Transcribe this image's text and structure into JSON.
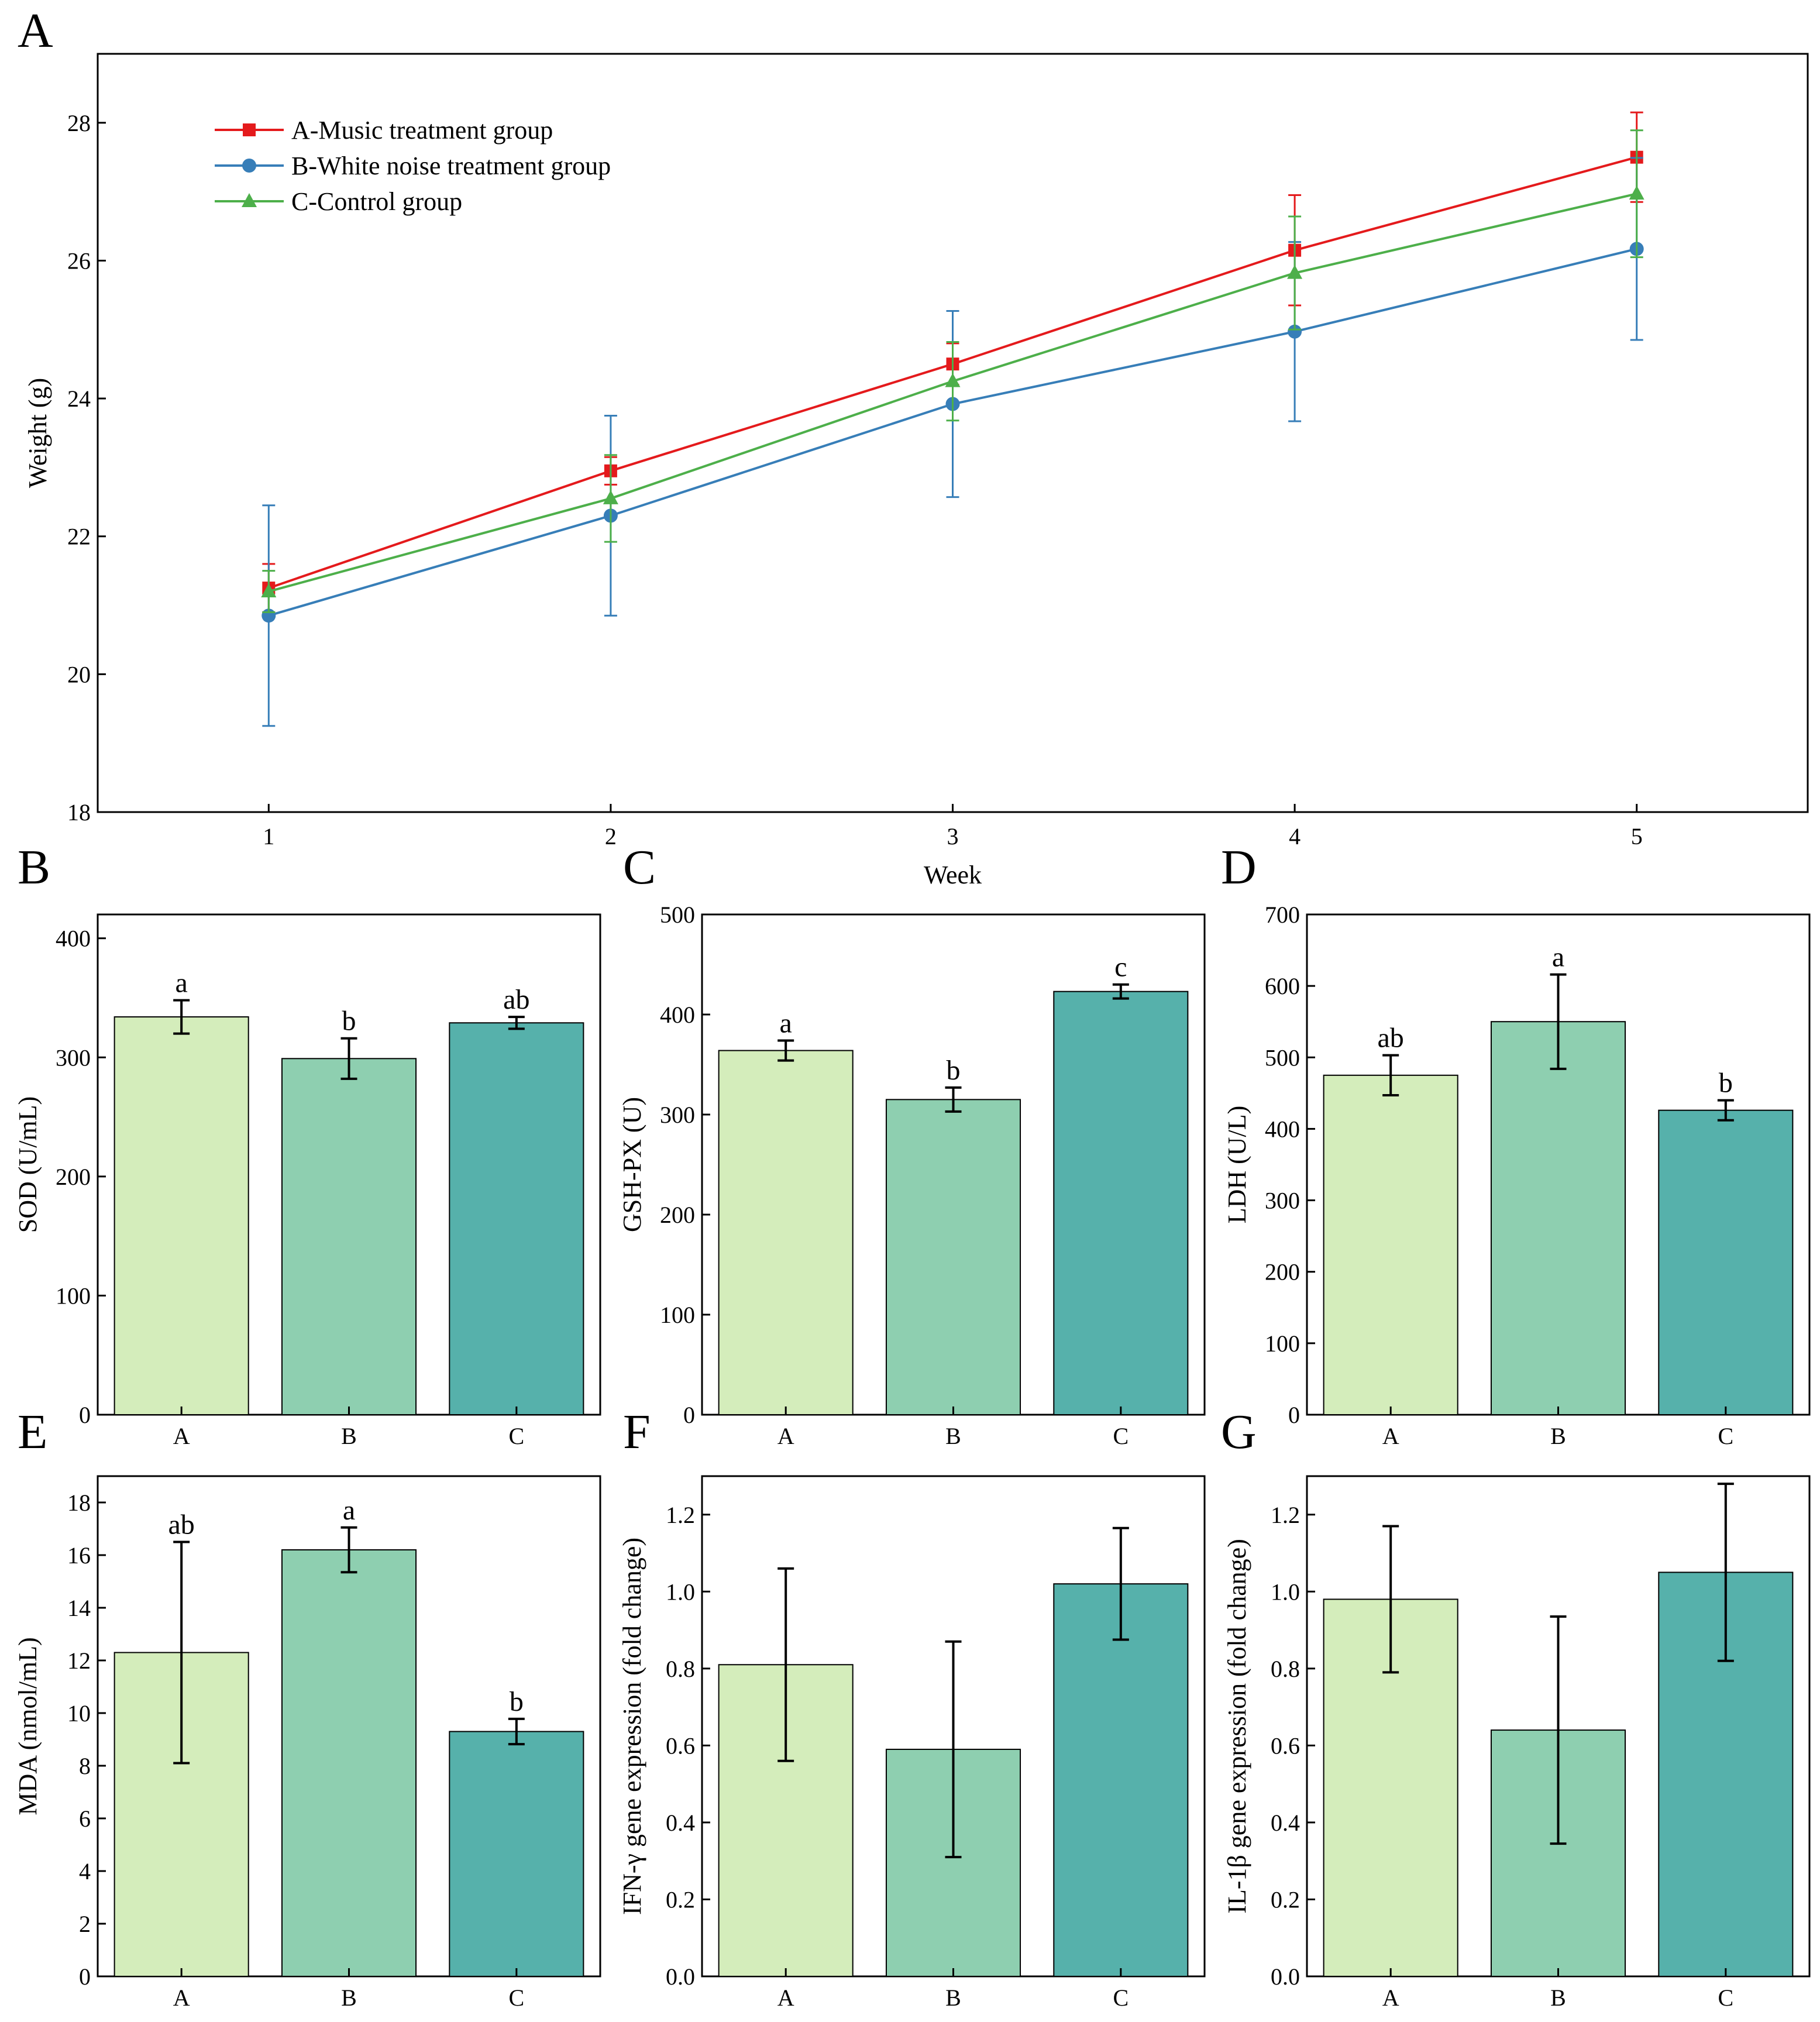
{
  "colors": {
    "music": "#e41a1c",
    "white_noise": "#377eb8",
    "control": "#4daf4a",
    "bar_A": "#d4edbb",
    "bar_B": "#8ecfb0",
    "bar_C": "#56b1ab",
    "axis": "#000000"
  },
  "chart_data": [
    {
      "id": "A",
      "panel": "A",
      "type": "line",
      "xlabel": "Week",
      "ylabel": "Weight (g)",
      "x": [
        1,
        2,
        3,
        4,
        5
      ],
      "xlim": [
        0.5,
        5.5
      ],
      "ylim": [
        18,
        29
      ],
      "yticks": [
        18,
        20,
        22,
        24,
        26,
        28
      ],
      "legend_position": "top-left",
      "series": [
        {
          "name": "A-Music treatment group",
          "color_key": "music",
          "marker": "square",
          "values": [
            21.25,
            22.95,
            24.5,
            26.15,
            27.5
          ],
          "errors": [
            0.35,
            0.2,
            0.3,
            0.8,
            0.65
          ]
        },
        {
          "name": "B-White noise treatment group",
          "color_key": "white_noise",
          "marker": "circle",
          "values": [
            20.85,
            22.3,
            23.92,
            24.97,
            26.17
          ],
          "errors": [
            1.6,
            1.45,
            1.35,
            1.3,
            1.32
          ]
        },
        {
          "name": "C-Control group",
          "color_key": "control",
          "marker": "triangle",
          "values": [
            21.2,
            22.55,
            24.25,
            25.82,
            26.97
          ],
          "errors": [
            0.3,
            0.63,
            0.57,
            0.82,
            0.92
          ]
        }
      ]
    },
    {
      "id": "B",
      "panel": "B",
      "type": "bar",
      "categories": [
        "A",
        "B",
        "C"
      ],
      "ylabel": "SOD (U/mL)",
      "ylim": [
        0,
        420
      ],
      "yticks": [
        0,
        100,
        200,
        300,
        400
      ],
      "values": [
        334,
        299,
        329
      ],
      "errors": [
        14,
        17,
        5
      ],
      "labels": [
        "a",
        "b",
        "ab"
      ]
    },
    {
      "id": "C",
      "panel": "C",
      "type": "bar",
      "categories": [
        "A",
        "B",
        "C"
      ],
      "ylabel": "GSH-PX (U)",
      "ylim": [
        0,
        500
      ],
      "yticks": [
        0,
        100,
        200,
        300,
        400,
        500
      ],
      "values": [
        364,
        315,
        423
      ],
      "errors": [
        10,
        12,
        7
      ],
      "labels": [
        "a",
        "b",
        "c"
      ]
    },
    {
      "id": "D",
      "panel": "D",
      "type": "bar",
      "categories": [
        "A",
        "B",
        "C"
      ],
      "ylabel": "LDH (U/L)",
      "ylim": [
        0,
        700
      ],
      "yticks": [
        0,
        100,
        200,
        300,
        400,
        500,
        600,
        700
      ],
      "values": [
        475,
        550,
        426
      ],
      "errors": [
        28,
        66,
        14
      ],
      "labels": [
        "ab",
        "a",
        "b"
      ]
    },
    {
      "id": "E",
      "panel": "E",
      "type": "bar",
      "categories": [
        "A",
        "B",
        "C"
      ],
      "ylabel": "MDA (nmol/mL)",
      "ylim": [
        0,
        19
      ],
      "yticks": [
        0,
        2,
        4,
        6,
        8,
        10,
        12,
        14,
        16,
        18
      ],
      "values": [
        12.3,
        16.2,
        9.3
      ],
      "errors": [
        4.2,
        0.85,
        0.48
      ],
      "labels": [
        "ab",
        "a",
        "b"
      ]
    },
    {
      "id": "F",
      "panel": "F",
      "type": "bar",
      "categories": [
        "A",
        "B",
        "C"
      ],
      "ylabel": "IFN-γ gene expression (fold change)",
      "ylim": [
        0,
        1.3
      ],
      "yticks": [
        0.0,
        0.2,
        0.4,
        0.6,
        0.8,
        1.0,
        1.2
      ],
      "tick_decimals": 1,
      "values": [
        0.81,
        0.59,
        1.02
      ],
      "errors": [
        0.25,
        0.28,
        0.145
      ],
      "labels": [
        "",
        "",
        ""
      ]
    },
    {
      "id": "G",
      "panel": "G",
      "type": "bar",
      "categories": [
        "A",
        "B",
        "C"
      ],
      "ylabel": "IL-1β gene expression (fold change)",
      "ylim": [
        0,
        1.3
      ],
      "yticks": [
        0.0,
        0.2,
        0.4,
        0.6,
        0.8,
        1.0,
        1.2
      ],
      "tick_decimals": 1,
      "values": [
        0.98,
        0.64,
        1.05
      ],
      "errors": [
        0.19,
        0.295,
        0.23
      ],
      "labels": [
        "",
        "",
        ""
      ]
    }
  ]
}
